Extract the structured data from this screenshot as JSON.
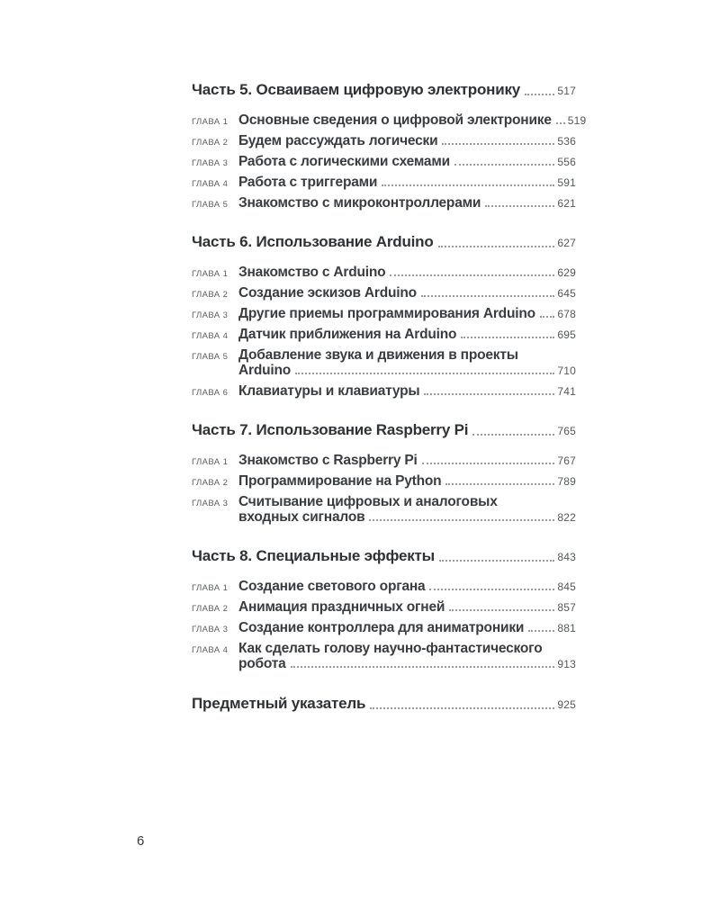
{
  "footer": {
    "page_number": "6"
  },
  "toc": {
    "sections": [
      {
        "title": "Часть 5. Осваиваем цифровую электронику",
        "page": "517",
        "chapters": [
          {
            "label": "ГЛАВА 1",
            "title": "Основные сведения о цифровой электронике",
            "page": "519"
          },
          {
            "label": "ГЛАВА 2",
            "title": "Будем рассуждать логически",
            "page": "536"
          },
          {
            "label": "ГЛАВА 3",
            "title": "Работа с логическими схемами",
            "page": "556"
          },
          {
            "label": "ГЛАВА 4",
            "title": "Работа с триггерами",
            "page": "591"
          },
          {
            "label": "ГЛАВА 5",
            "title": "Знакомство с микроконтроллерами",
            "page": "621"
          }
        ]
      },
      {
        "title": "Часть 6. Использование Arduino",
        "page": "627",
        "chapters": [
          {
            "label": "ГЛАВА 1",
            "title": "Знакомство с Arduino",
            "page": "629"
          },
          {
            "label": "ГЛАВА 2",
            "title": "Создание эскизов Arduino",
            "page": "645"
          },
          {
            "label": "ГЛАВА 3",
            "title": "Другие приемы программирования Arduino",
            "page": "678"
          },
          {
            "label": "ГЛАВА 4",
            "title": "Датчик приближения на Arduino",
            "page": "695"
          },
          {
            "label": "ГЛАВА 5",
            "title": "Добавление звука и движения в проекты",
            "title2": "Arduino",
            "page": "710"
          },
          {
            "label": "ГЛАВА 6",
            "title": "Клавиатуры и клавиатуры",
            "page": "741"
          }
        ]
      },
      {
        "title": "Часть 7. Использование Raspberry Pi",
        "page": "765",
        "chapters": [
          {
            "label": "ГЛАВА 1",
            "title": "Знакомство с Raspberry Pi",
            "page": "767"
          },
          {
            "label": "ГЛАВА 2",
            "title": "Программирование на Python",
            "page": "789"
          },
          {
            "label": "ГЛАВА 3",
            "title": "Считывание цифровых и аналоговых",
            "title2": "входных сигналов",
            "page": "822"
          }
        ]
      },
      {
        "title": "Часть 8. Специальные эффекты",
        "page": "843",
        "chapters": [
          {
            "label": "ГЛАВА 1",
            "title": "Создание светового органа",
            "page": "845"
          },
          {
            "label": "ГЛАВА 2",
            "title": "Анимация праздничных огней",
            "page": "857"
          },
          {
            "label": "ГЛАВА 3",
            "title": "Создание контроллера для аниматроники",
            "page": "881"
          },
          {
            "label": "ГЛАВА 4",
            "title": "Как сделать голову научно-фантастического",
            "title2": "робота",
            "page": "913"
          }
        ]
      }
    ],
    "index": {
      "title": "Предметный указатель",
      "page": "925"
    }
  }
}
